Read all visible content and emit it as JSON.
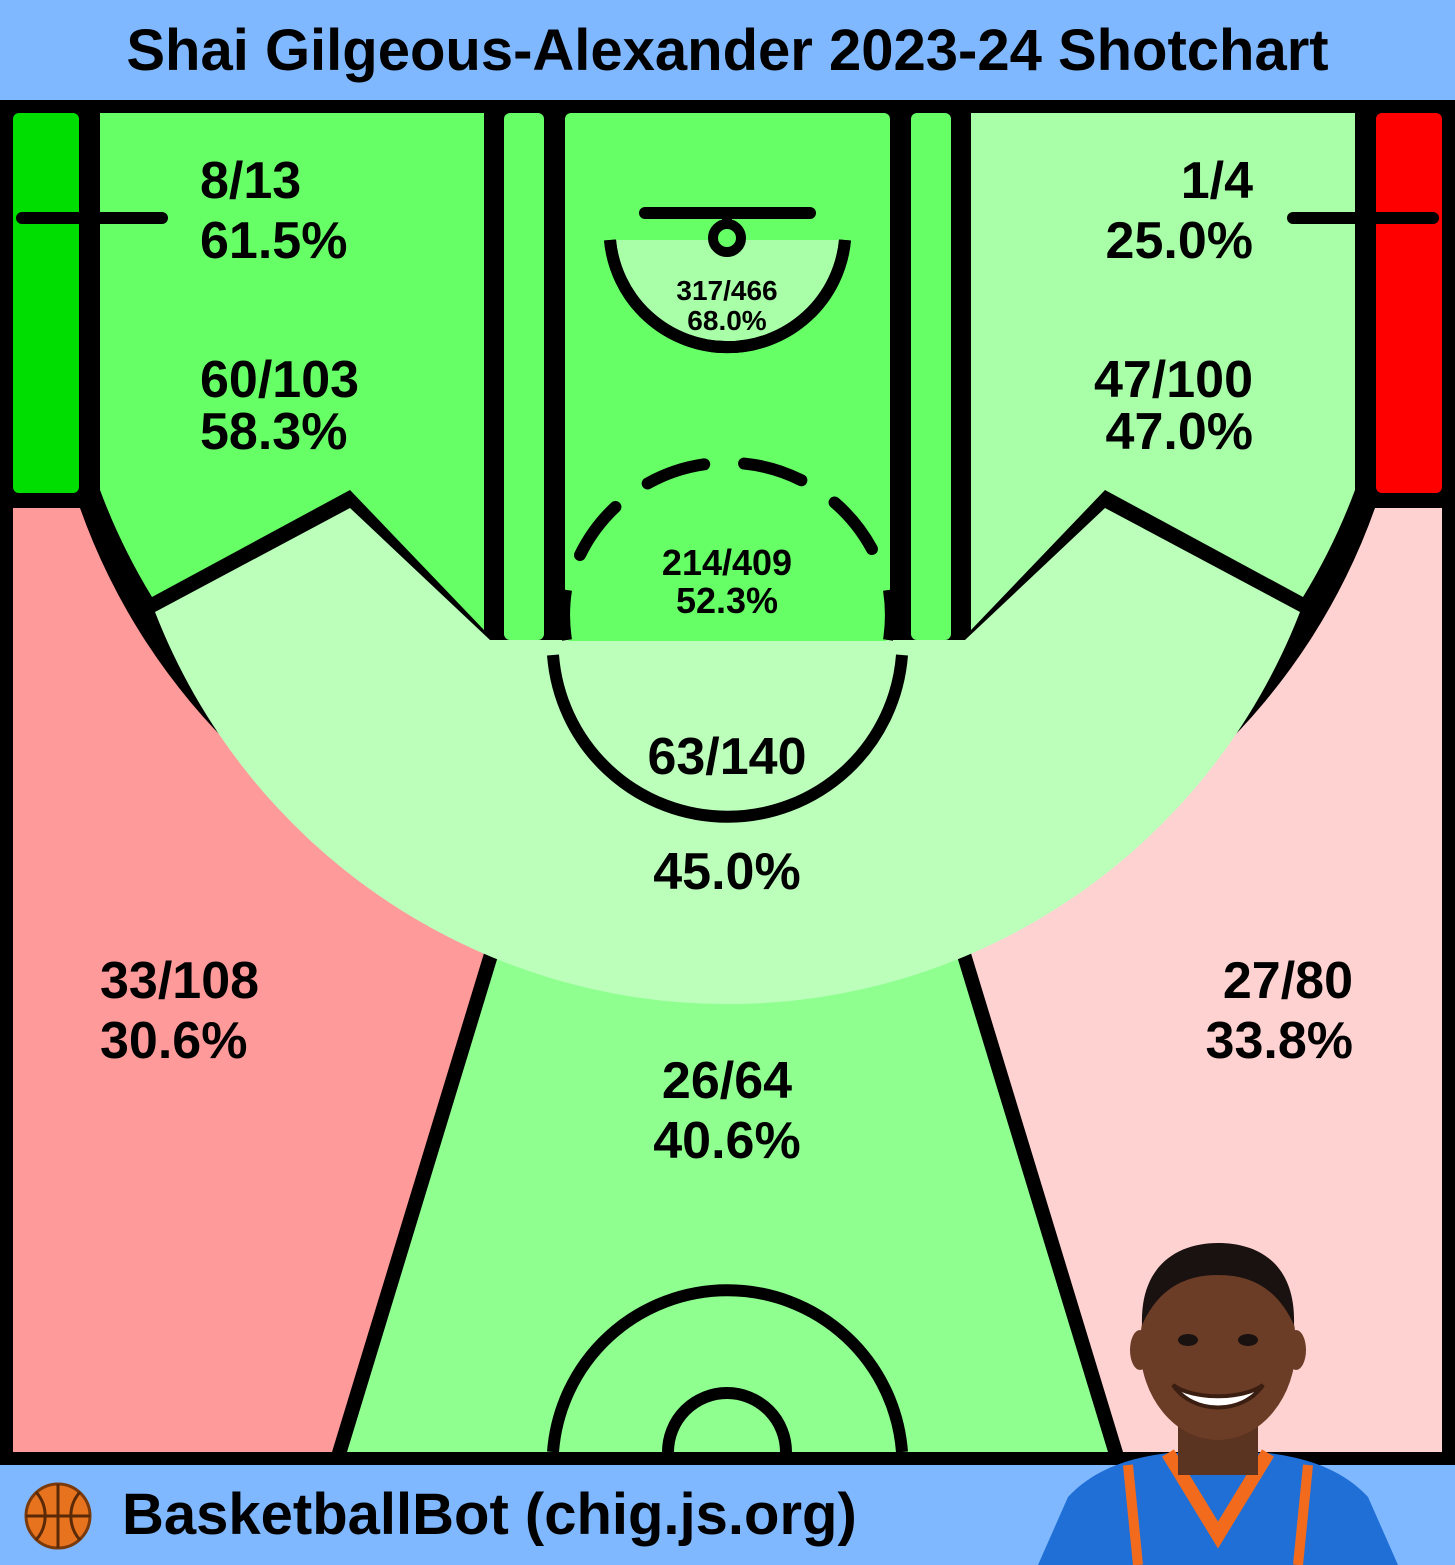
{
  "title": "Shai Gilgeous-Alexander 2023-24 Shotchart",
  "footer": {
    "icon": "basketball-icon",
    "text": "BasketballBot (chig.js.org)"
  },
  "colors": {
    "background": "#7fb8ff",
    "above_avg_strong": "#00dd00",
    "above_avg": "#66ff66",
    "good": "#8fff8f",
    "near_avg": "#a8ffa8",
    "slightly_above": "#bbffbb",
    "below_avg": "#ff9a9a",
    "slightly_below": "#ffd2d2",
    "far_below": "#ff0000"
  },
  "chart_data": {
    "type": "heatmap",
    "title": "Shai Gilgeous-Alexander 2023-24 Shotchart",
    "zones": [
      {
        "name": "Restricted Area",
        "made": 317,
        "attempts": 466,
        "pct": "68.0%",
        "label_fg": "317/466",
        "label_pct": "68.0%",
        "color": "#a8ffa8"
      },
      {
        "name": "Paint (Non-RA)",
        "made": 214,
        "attempts": 409,
        "pct": "52.3%",
        "label_fg": "214/409",
        "label_pct": "52.3%",
        "color": "#66ff66"
      },
      {
        "name": "Left Short Mid-Range",
        "made": 8,
        "attempts": 13,
        "pct": "61.5%",
        "label_fg": "8/13",
        "label_pct": "61.5%",
        "color": "#66ff66"
      },
      {
        "name": "Left Mid-Range",
        "made": 60,
        "attempts": 103,
        "pct": "58.3%",
        "label_fg": "60/103",
        "label_pct": "58.3%",
        "color": "#66ff66"
      },
      {
        "name": "Right Short Mid-Range",
        "made": 1,
        "attempts": 4,
        "pct": "25.0%",
        "label_fg": "1/4",
        "label_pct": "25.0%",
        "color": "#a8ffa8"
      },
      {
        "name": "Right Mid-Range",
        "made": 47,
        "attempts": 100,
        "pct": "47.0%",
        "label_fg": "47/100",
        "label_pct": "47.0%",
        "color": "#a8ffa8"
      },
      {
        "name": "Top Mid-Range",
        "made": 63,
        "attempts": 140,
        "pct": "45.0%",
        "label_fg": "63/140",
        "label_pct": "45.0%",
        "color": "#bbffbb"
      },
      {
        "name": "Left Corner 3",
        "made": null,
        "attempts": null,
        "pct": null,
        "color": "#00dd00"
      },
      {
        "name": "Right Corner 3",
        "made": null,
        "attempts": null,
        "pct": null,
        "color": "#ff0000"
      },
      {
        "name": "Left Wing 3",
        "made": 33,
        "attempts": 108,
        "pct": "30.6%",
        "label_fg": "33/108",
        "label_pct": "30.6%",
        "color": "#ff9a9a"
      },
      {
        "name": "Top of Key 3",
        "made": 26,
        "attempts": 64,
        "pct": "40.6%",
        "label_fg": "26/64",
        "label_pct": "40.6%",
        "color": "#8fff8f"
      },
      {
        "name": "Right Wing 3",
        "made": 27,
        "attempts": 80,
        "pct": "33.8%",
        "label_fg": "27/80",
        "label_pct": "33.8%",
        "color": "#ffd2d2"
      }
    ]
  }
}
